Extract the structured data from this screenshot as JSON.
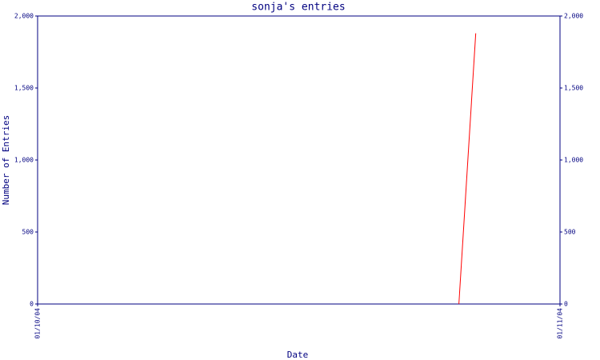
{
  "chart_data": {
    "type": "line",
    "title": "sonja's entries",
    "x_label": "Date",
    "y_label": "Number of Entries",
    "x": [
      "2004-10-26",
      "2004-10-27"
    ],
    "series": [
      {
        "name": "sonja",
        "color": "#ff0000",
        "values": [
          0,
          1880
        ]
      }
    ],
    "xlim": [
      "2004-10-01",
      "2004-11-01"
    ],
    "xticks": [
      {
        "value": "2004-10-01",
        "label": "01/10/04"
      },
      {
        "value": "2004-11-01",
        "label": "01/11/04"
      }
    ],
    "ylim": [
      0,
      2000
    ],
    "yticks": [
      0,
      500,
      {
        "value": 1000,
        "label": "1,000"
      },
      {
        "value": 1500,
        "label": "1,500"
      },
      {
        "value": 2000,
        "label": "2,000"
      }
    ],
    "grid": false
  }
}
